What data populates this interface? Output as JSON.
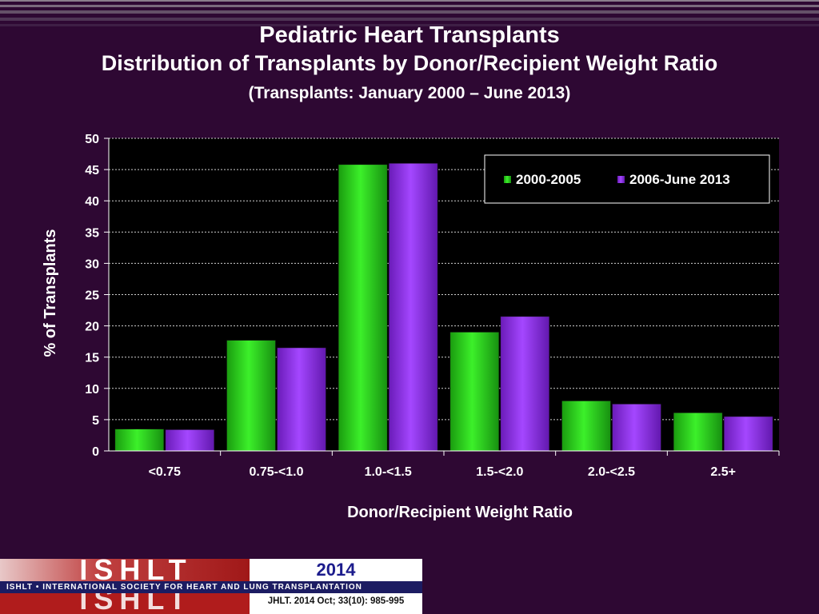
{
  "titles": {
    "main": "Pediatric Heart Transplants",
    "sub": "Distribution of Transplants by Donor/Recipient Weight Ratio",
    "period": "(Transplants: January 2000 – June 2013)"
  },
  "chart_data": {
    "type": "bar",
    "xlabel": "Donor/Recipient Weight Ratio",
    "ylabel": "% of Transplants",
    "ylim": [
      0,
      50
    ],
    "yticks": [
      0,
      5,
      10,
      15,
      20,
      25,
      30,
      35,
      40,
      45,
      50
    ],
    "grid": true,
    "legend_position": "top-right",
    "categories": [
      "<0.75",
      "0.75-<1.0",
      "1.0-<1.5",
      "1.5-<2.0",
      "2.0-<2.5",
      "2.5+"
    ],
    "series": [
      {
        "name": "2000-2005",
        "color": "#22d314",
        "values": [
          3.5,
          17.7,
          45.8,
          19.0,
          8.0,
          6.1
        ]
      },
      {
        "name": "2006-June 2013",
        "color": "#8e2ee8",
        "values": [
          3.4,
          16.5,
          46.0,
          21.5,
          7.5,
          5.5
        ]
      }
    ]
  },
  "footer": {
    "logo_text": "ISHLT",
    "tagline": "ISHLT • INTERNATIONAL SOCIETY FOR HEART AND LUNG TRANSPLANTATION",
    "year": "2014",
    "citation": "JHLT. 2014 Oct; 33(10): 985-995"
  }
}
